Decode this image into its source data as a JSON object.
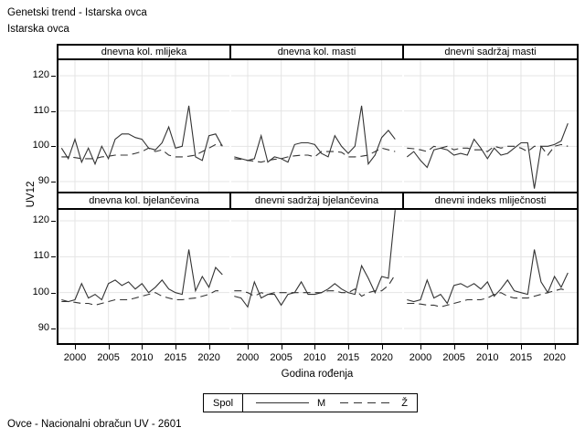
{
  "titles": {
    "line1": "Genetski trend - Istarska ovca",
    "line2": "Istarska ovca"
  },
  "footer": "Ovce - Nacionalni obračun UV - 2601",
  "chart_data": {
    "type": "line",
    "layout": "2x3 panel lattice, shared axes",
    "title": "Genetski trend - Istarska ovca",
    "subtitle": "Istarska ovca",
    "xlabel": "Godina rođenja",
    "ylabel": "UV12",
    "grid": true,
    "x_ticks": [
      2000,
      2005,
      2010,
      2015,
      2020
    ],
    "y_ticks": [
      120,
      110,
      100,
      90
    ],
    "ylim": [
      87,
      124
    ],
    "years": [
      1998,
      1999,
      2000,
      2001,
      2002,
      2003,
      2004,
      2005,
      2006,
      2007,
      2008,
      2009,
      2010,
      2011,
      2012,
      2013,
      2014,
      2015,
      2016,
      2017,
      2018,
      2019,
      2020,
      2021,
      2022
    ],
    "legend": {
      "title": "Spol",
      "position": "bottom",
      "entries": [
        {
          "label": "M",
          "line": "solid"
        },
        {
          "label": "Ž",
          "line": "dashed"
        }
      ]
    },
    "line_color": "#333333",
    "panels": [
      {
        "title": "dnevna kol. mlijeka",
        "series": [
          {
            "name": "M",
            "style": "solid",
            "values": [
              99.5,
              96.5,
              102,
              95.5,
              99.5,
              95,
              100,
              96.5,
              102,
              103.5,
              103.5,
              102.5,
              102,
              99.5,
              99,
              101,
              105.5,
              99.5,
              100,
              111.5,
              97,
              96,
              103,
              103.5,
              100
            ]
          },
          {
            "name": "Ž",
            "style": "dashed",
            "values": [
              97,
              97,
              96.8,
              96.5,
              96.5,
              96.5,
              97,
              97.2,
              97.5,
              97.5,
              97.5,
              98,
              98.5,
              99.5,
              98.5,
              99,
              97.5,
              97,
              97,
              97.2,
              97.5,
              98.5,
              99.5,
              100.5,
              100.3
            ]
          }
        ]
      },
      {
        "title": "dnevna kol. masti",
        "series": [
          {
            "name": "M",
            "style": "solid",
            "values": [
              97,
              96.5,
              96,
              96.5,
              103,
              95.5,
              97,
              96.5,
              95.5,
              100.5,
              101,
              101,
              100.5,
              98,
              97,
              103,
              100,
              98,
              100,
              111.5,
              95,
              97.5,
              102.5,
              104.5,
              102
            ]
          },
          {
            "name": "Ž",
            "style": "dashed",
            "values": [
              96.5,
              96.3,
              96,
              95.8,
              95.5,
              96,
              96.3,
              96.5,
              97,
              97.3,
              97.5,
              97.5,
              97,
              98.5,
              98.5,
              98.5,
              98.3,
              97,
              97,
              97.2,
              97.5,
              98.5,
              99.5,
              99,
              98.5
            ]
          }
        ]
      },
      {
        "title": "dnevni sadržaj masti",
        "series": [
          {
            "name": "M",
            "style": "solid",
            "values": [
              97,
              98.5,
              96,
              94,
              99,
              99.5,
              99,
              97.5,
              98,
              97.5,
              102,
              99.5,
              96.5,
              99.5,
              97.5,
              98,
              99.5,
              101,
              101,
              88,
              100,
              100,
              100.5,
              101.5,
              106.5
            ]
          },
          {
            "name": "Ž",
            "style": "dashed",
            "values": [
              99.5,
              99.3,
              99,
              98.5,
              100,
              99.5,
              100,
              99,
              99.5,
              99.5,
              99,
              99,
              98.5,
              100,
              99.5,
              100,
              100,
              99.5,
              98.5,
              100,
              100,
              97.5,
              100,
              100.5,
              100
            ]
          }
        ]
      },
      {
        "title": "dnevna kol. bjelančevina",
        "series": [
          {
            "name": "M",
            "style": "solid",
            "values": [
              98,
              97.5,
              98,
              102.5,
              98.5,
              99.5,
              98,
              102.5,
              103.5,
              102,
              103,
              101,
              102.5,
              100,
              101.5,
              103.5,
              101,
              100,
              99.5,
              112,
              100.5,
              104.5,
              101.5,
              107,
              105
            ]
          },
          {
            "name": "Ž",
            "style": "dashed",
            "values": [
              97.5,
              97.5,
              97.3,
              97,
              97,
              96.5,
              97,
              97.5,
              98,
              98,
              98,
              98.5,
              99,
              99.5,
              100,
              99,
              98.5,
              98,
              98,
              98.3,
              98.5,
              99,
              99.5,
              100.5,
              100.5
            ]
          }
        ]
      },
      {
        "title": "dnevni sadržaj bjelančevina",
        "series": [
          {
            "name": "M",
            "style": "solid",
            "values": [
              99,
              98.5,
              96,
              103,
              98.5,
              99.5,
              99.5,
              96.5,
              99.5,
              100,
              103,
              99.5,
              99.5,
              100,
              101,
              102.5,
              101,
              100,
              99.5,
              107.5,
              104,
              100,
              104.5,
              104,
              123
            ]
          },
          {
            "name": "Ž",
            "style": "dashed",
            "values": [
              100.5,
              100.5,
              100,
              99,
              100,
              99.5,
              100,
              100,
              100,
              100,
              100,
              100,
              100,
              100,
              100.5,
              100.5,
              100,
              100,
              101,
              99,
              100,
              100.5,
              100.5,
              102,
              105
            ]
          }
        ]
      },
      {
        "title": "dnevni indeks mliječnosti",
        "series": [
          {
            "name": "M",
            "style": "solid",
            "values": [
              98,
              97.5,
              98,
              103.5,
              98.5,
              99.5,
              97,
              102,
              102.5,
              101.5,
              102.5,
              101,
              103,
              99,
              101,
              103.5,
              100.5,
              100,
              99.5,
              112,
              103,
              100,
              104.5,
              101.5,
              105.5
            ]
          },
          {
            "name": "Ž",
            "style": "dashed",
            "values": [
              97,
              97,
              96.8,
              96.5,
              96.5,
              96,
              96.5,
              97,
              97.5,
              98,
              98,
              98,
              98.5,
              99.5,
              100,
              99,
              98.5,
              98.5,
              98.5,
              99,
              99.5,
              100,
              100.5,
              101,
              100.5
            ]
          }
        ]
      }
    ]
  }
}
